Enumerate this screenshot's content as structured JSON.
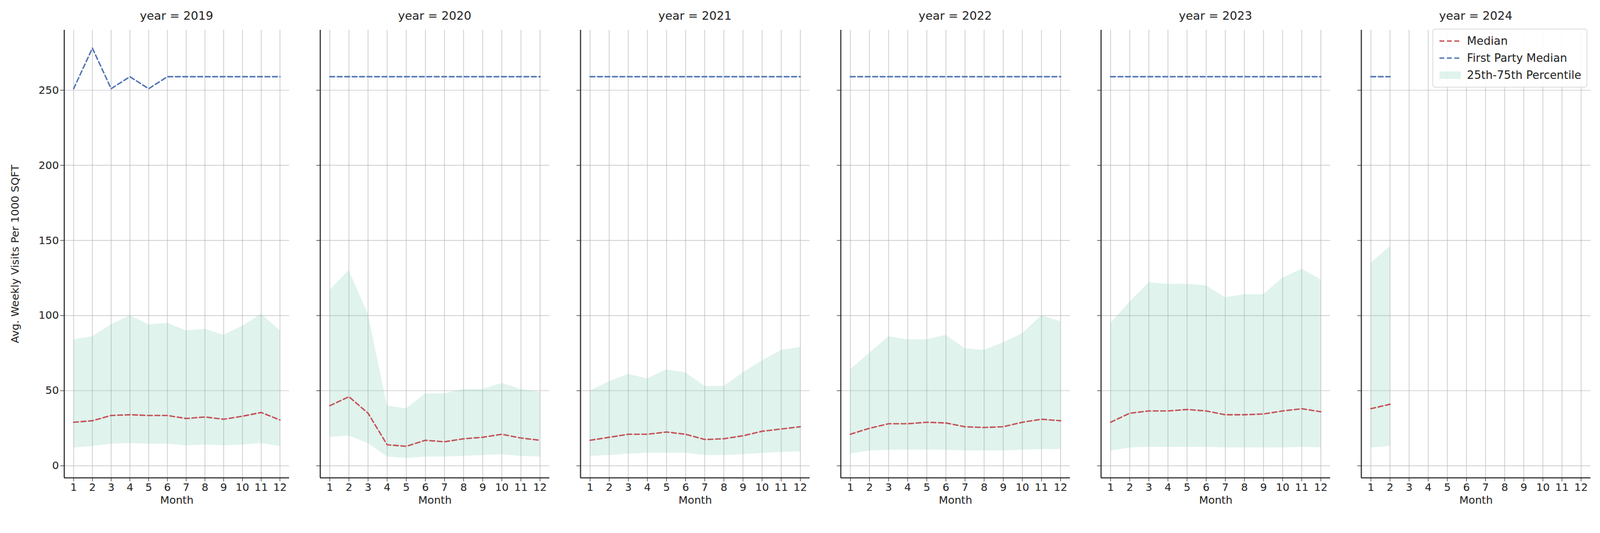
{
  "chart_data": [
    {
      "type": "line",
      "title": "year = 2019",
      "xlabel": "Month",
      "ylabel": "Avg. Weekly Visits Per 1000 SQFT",
      "x": [
        1,
        2,
        3,
        4,
        5,
        6,
        7,
        8,
        9,
        10,
        11,
        12
      ],
      "xlim": [
        0.5,
        12.5
      ],
      "xticks": [
        1,
        2,
        3,
        4,
        5,
        6,
        7,
        8,
        9,
        10,
        11,
        12
      ],
      "ylim": [
        -8,
        290
      ],
      "yticks": [
        0,
        50,
        100,
        150,
        200,
        250
      ],
      "grid": true,
      "series": [
        {
          "name": "25th-75th Percentile",
          "type": "area",
          "color": "#66c2a5",
          "low": [
            12,
            13,
            14.5,
            15,
            14.5,
            14.5,
            13.5,
            14,
            13.5,
            14,
            15,
            13
          ],
          "high": [
            84,
            86,
            94,
            100,
            94,
            95,
            90,
            91,
            87,
            93,
            101,
            90
          ]
        },
        {
          "name": "Median",
          "type": "line",
          "color": "#c44e52",
          "line_style": "dashed",
          "values": [
            29,
            30,
            33.5,
            34,
            33.5,
            33.5,
            31.5,
            32.5,
            31,
            33,
            35.5,
            30.5
          ]
        },
        {
          "name": "First Party Median",
          "type": "line",
          "color": "#4c72b0",
          "line_style": "dashed",
          "values": [
            251,
            278,
            251,
            259,
            251,
            259,
            259,
            259,
            259,
            259,
            259,
            259
          ]
        }
      ]
    },
    {
      "type": "line",
      "title": "year = 2020",
      "xlabel": "Month",
      "tick_labels": "x",
      "x": [
        1,
        2,
        3,
        4,
        5,
        6,
        7,
        8,
        9,
        10,
        11,
        12
      ],
      "xlim": [
        0.5,
        12.5
      ],
      "xticks": [
        1,
        2,
        3,
        4,
        5,
        6,
        7,
        8,
        9,
        10,
        11,
        12
      ],
      "ylim": [
        -8,
        290
      ],
      "yticks": [
        0,
        50,
        100,
        150,
        200,
        250
      ],
      "grid": true,
      "series": [
        {
          "name": "25th-75th Percentile",
          "type": "area",
          "color": "#66c2a5",
          "low": [
            19,
            20,
            15,
            6,
            5,
            6,
            6,
            6.5,
            7,
            7.5,
            6.5,
            6
          ],
          "high": [
            117,
            130,
            101,
            40,
            38,
            48,
            48,
            51,
            51,
            55,
            51,
            49
          ]
        },
        {
          "name": "Median",
          "type": "line",
          "color": "#c44e52",
          "line_style": "dashed",
          "values": [
            40,
            46,
            35,
            14,
            13,
            17,
            16,
            18,
            19,
            21,
            18.5,
            17
          ]
        },
        {
          "name": "First Party Median",
          "type": "line",
          "color": "#4c72b0",
          "line_style": "dashed",
          "values": [
            259,
            259,
            259,
            259,
            259,
            259,
            259,
            259,
            259,
            259,
            259,
            259
          ]
        }
      ]
    },
    {
      "type": "line",
      "title": "year = 2021",
      "xlabel": "Month",
      "tick_labels": "x",
      "x": [
        1,
        2,
        3,
        4,
        5,
        6,
        7,
        8,
        9,
        10,
        11,
        12
      ],
      "xlim": [
        0.5,
        12.5
      ],
      "xticks": [
        1,
        2,
        3,
        4,
        5,
        6,
        7,
        8,
        9,
        10,
        11,
        12
      ],
      "ylim": [
        -8,
        290
      ],
      "yticks": [
        0,
        50,
        100,
        150,
        200,
        250
      ],
      "grid": true,
      "series": [
        {
          "name": "25th-75th Percentile",
          "type": "area",
          "color": "#66c2a5",
          "low": [
            6.5,
            7,
            8,
            8.5,
            8.5,
            8.5,
            7,
            7,
            7.5,
            8.5,
            9,
            9.5
          ],
          "high": [
            50,
            56,
            61,
            58,
            64,
            62,
            53,
            53,
            62,
            70,
            77,
            79
          ]
        },
        {
          "name": "Median",
          "type": "line",
          "color": "#c44e52",
          "line_style": "dashed",
          "values": [
            17,
            19,
            21,
            21,
            22.5,
            21,
            17.5,
            18,
            20,
            23,
            24.5,
            26
          ]
        },
        {
          "name": "First Party Median",
          "type": "line",
          "color": "#4c72b0",
          "line_style": "dashed",
          "values": [
            259,
            259,
            259,
            259,
            259,
            259,
            259,
            259,
            259,
            259,
            259,
            259
          ]
        }
      ]
    },
    {
      "type": "line",
      "title": "year = 2022",
      "xlabel": "Month",
      "tick_labels": "x",
      "x": [
        1,
        2,
        3,
        4,
        5,
        6,
        7,
        8,
        9,
        10,
        11,
        12
      ],
      "xlim": [
        0.5,
        12.5
      ],
      "xticks": [
        1,
        2,
        3,
        4,
        5,
        6,
        7,
        8,
        9,
        10,
        11,
        12
      ],
      "ylim": [
        -8,
        290
      ],
      "yticks": [
        0,
        50,
        100,
        150,
        200,
        250
      ],
      "grid": true,
      "series": [
        {
          "name": "25th-75th Percentile",
          "type": "area",
          "color": "#66c2a5",
          "low": [
            8,
            10,
            10.5,
            10.5,
            10.5,
            10.5,
            10,
            10,
            10,
            10.5,
            11,
            11
          ],
          "high": [
            64,
            75,
            86,
            84,
            84,
            87,
            78,
            77,
            82,
            88,
            100,
            96
          ]
        },
        {
          "name": "Median",
          "type": "line",
          "color": "#c44e52",
          "line_style": "dashed",
          "values": [
            21,
            25,
            28,
            28,
            29,
            28.5,
            26,
            25.5,
            26,
            29,
            31,
            30
          ]
        },
        {
          "name": "First Party Median",
          "type": "line",
          "color": "#4c72b0",
          "line_style": "dashed",
          "values": [
            259,
            259,
            259,
            259,
            259,
            259,
            259,
            259,
            259,
            259,
            259,
            259
          ]
        }
      ]
    },
    {
      "type": "line",
      "title": "year = 2023",
      "xlabel": "Month",
      "tick_labels": "x",
      "x": [
        1,
        2,
        3,
        4,
        5,
        6,
        7,
        8,
        9,
        10,
        11,
        12
      ],
      "xlim": [
        0.5,
        12.5
      ],
      "xticks": [
        1,
        2,
        3,
        4,
        5,
        6,
        7,
        8,
        9,
        10,
        11,
        12
      ],
      "ylim": [
        -8,
        290
      ],
      "yticks": [
        0,
        50,
        100,
        150,
        200,
        250
      ],
      "grid": true,
      "series": [
        {
          "name": "25th-75th Percentile",
          "type": "area",
          "color": "#66c2a5",
          "low": [
            10,
            12,
            12.5,
            12.5,
            12.5,
            12.5,
            12,
            12,
            12,
            12,
            12.5,
            12
          ],
          "high": [
            95,
            109,
            122,
            121,
            121,
            120,
            112,
            114,
            114,
            125,
            131,
            124
          ]
        },
        {
          "name": "Median",
          "type": "line",
          "color": "#c44e52",
          "line_style": "dashed",
          "values": [
            29,
            35,
            36.5,
            36.5,
            37.5,
            36.5,
            34,
            34,
            34.5,
            36.5,
            38,
            36
          ]
        },
        {
          "name": "First Party Median",
          "type": "line",
          "color": "#4c72b0",
          "line_style": "dashed",
          "values": [
            259,
            259,
            259,
            259,
            259,
            259,
            259,
            259,
            259,
            259,
            259,
            259
          ]
        }
      ]
    },
    {
      "type": "line",
      "title": "year = 2024",
      "xlabel": "Month",
      "tick_labels": "x",
      "legend": "upper right",
      "x": [
        1,
        2
      ],
      "xlim": [
        0.5,
        12.5
      ],
      "xticks": [
        1,
        2,
        3,
        4,
        5,
        6,
        7,
        8,
        9,
        10,
        11,
        12
      ],
      "ylim": [
        -8,
        290
      ],
      "yticks": [
        0,
        50,
        100,
        150,
        200,
        250
      ],
      "grid": true,
      "series": [
        {
          "name": "25th-75th Percentile",
          "type": "area",
          "color": "#66c2a5",
          "low": [
            12,
            13
          ],
          "high": [
            135,
            146
          ]
        },
        {
          "name": "Median",
          "type": "line",
          "color": "#c44e52",
          "line_style": "dashed",
          "values": [
            38,
            41
          ]
        },
        {
          "name": "First Party Median",
          "type": "line",
          "color": "#4c72b0",
          "line_style": "dashed",
          "values": [
            259,
            259
          ]
        }
      ]
    }
  ]
}
